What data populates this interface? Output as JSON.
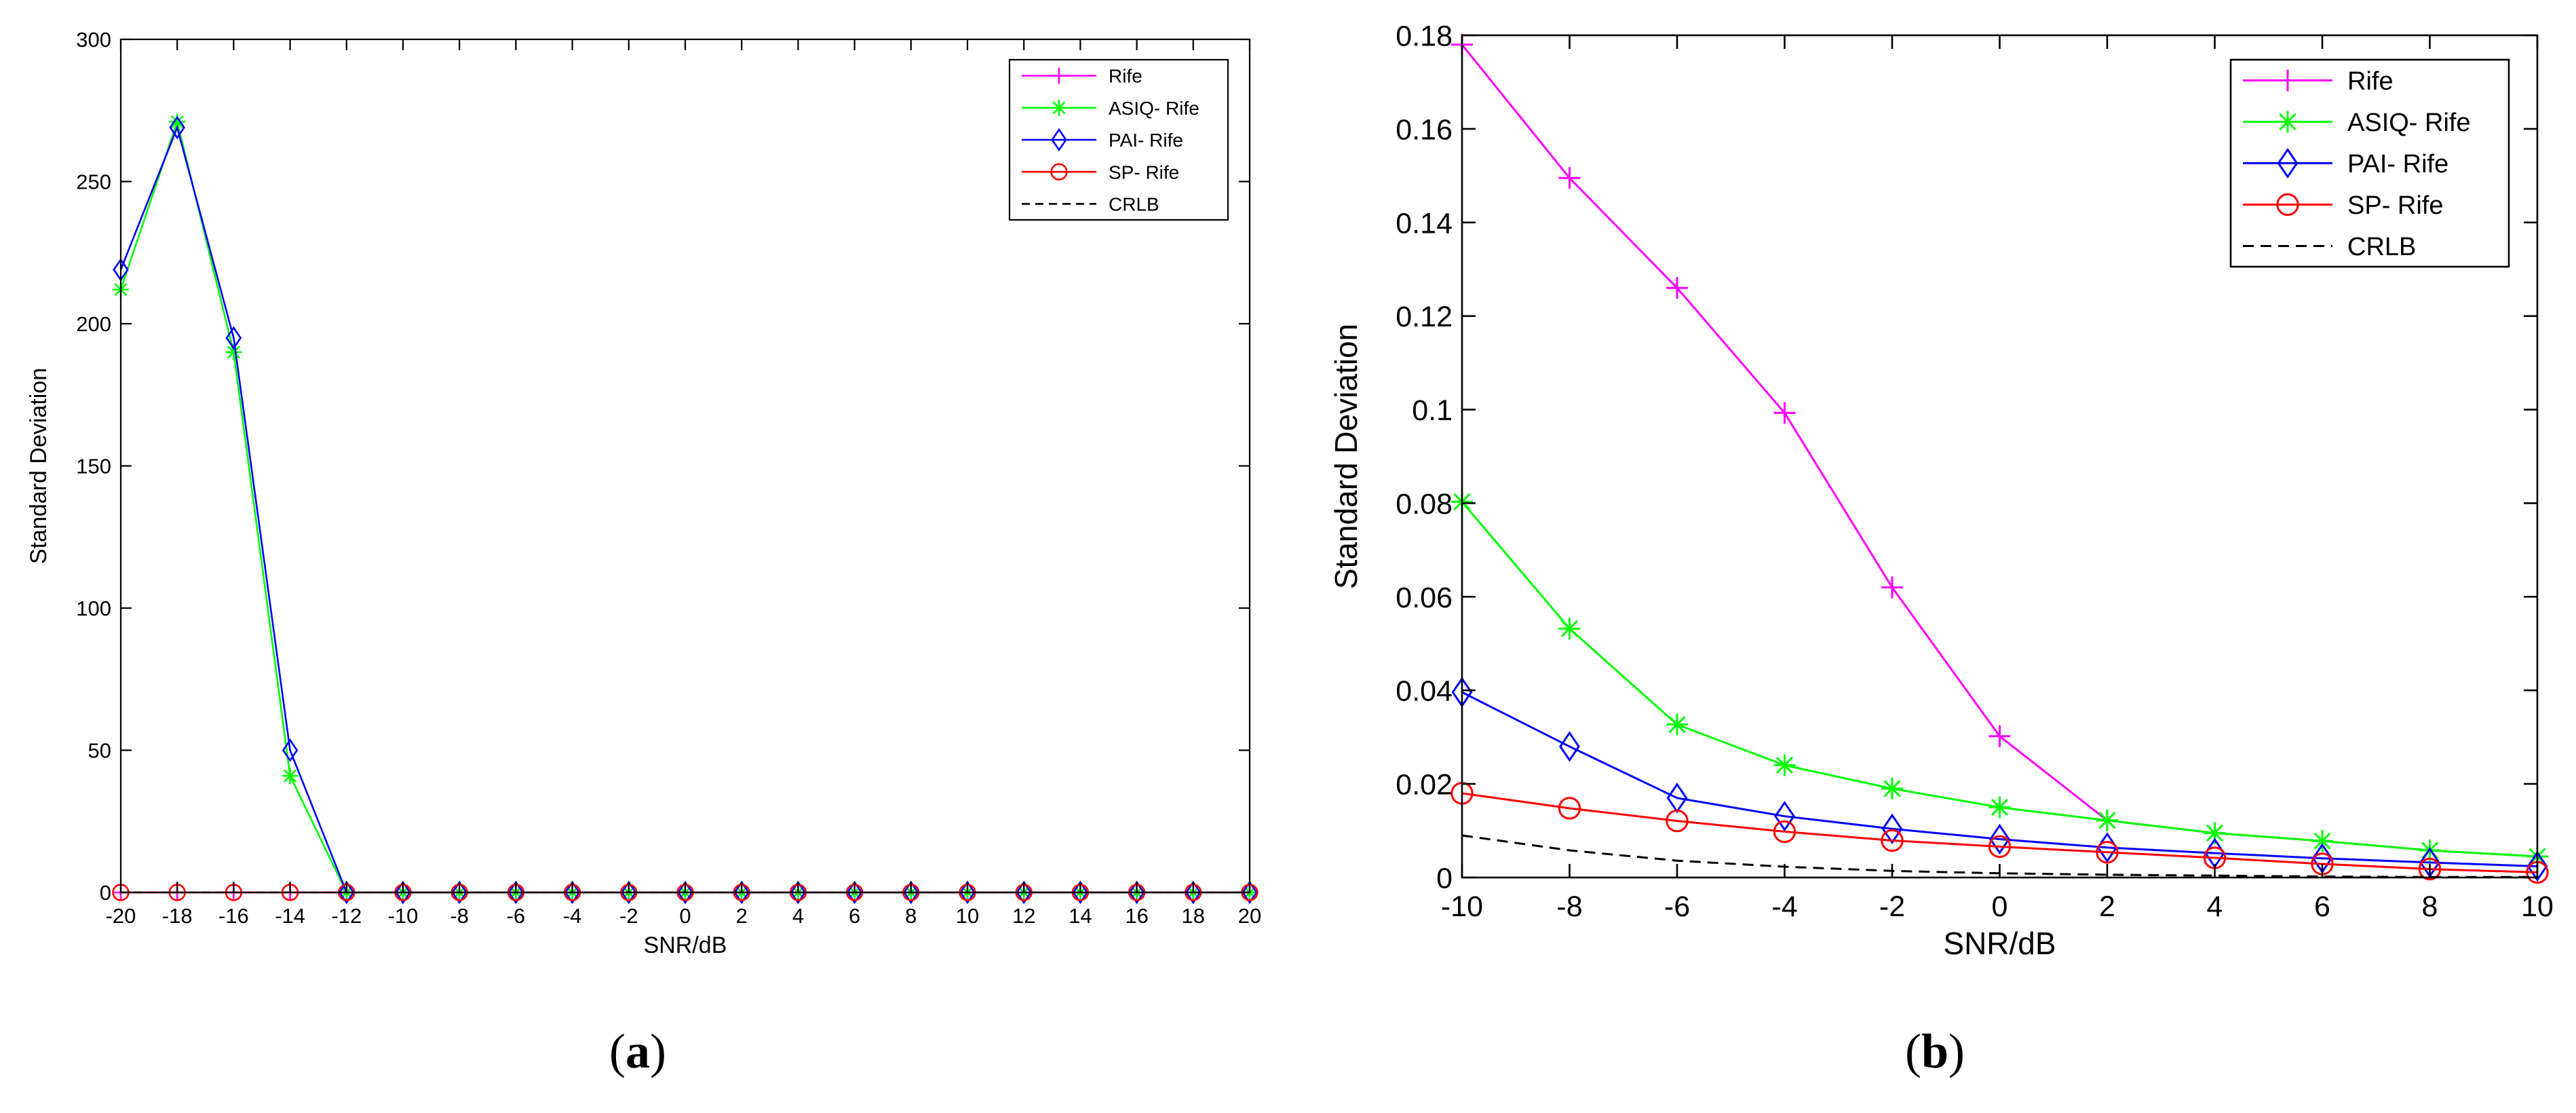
{
  "subcaptions": {
    "a": "a",
    "b": "b"
  },
  "colors": {
    "rife": "#ff00ff",
    "asiq": "#00ff00",
    "pai": "#0000ff",
    "sp": "#ff0000",
    "crlb": "#000000"
  },
  "chart_data": [
    {
      "type": "line",
      "panel": "a",
      "title": "",
      "xlabel": "SNR/dB",
      "ylabel": "Standard Deviation",
      "xlim": [
        -20,
        20
      ],
      "ylim": [
        0,
        300
      ],
      "xticks": [
        -20,
        -18,
        -16,
        -14,
        -12,
        -10,
        -8,
        -6,
        -4,
        -2,
        0,
        2,
        4,
        6,
        8,
        10,
        12,
        14,
        16,
        18,
        20
      ],
      "yticks": [
        0,
        50,
        100,
        150,
        200,
        250,
        300
      ],
      "legend_position": "top-right",
      "x": [
        -20,
        -18,
        -16,
        -14,
        -12,
        -10,
        -8,
        -6,
        -4,
        -2,
        0,
        2,
        4,
        6,
        8,
        10,
        12,
        14,
        16,
        18,
        20
      ],
      "series": [
        {
          "name": "Rife",
          "key": "rife",
          "marker": "plus",
          "dash": false,
          "values": [
            0,
            0,
            0,
            0,
            0,
            0,
            0,
            0,
            0,
            0,
            0,
            0,
            0,
            0,
            0,
            0,
            0,
            0,
            0,
            0,
            0
          ]
        },
        {
          "name": "ASIQ- Rife",
          "key": "asiq",
          "marker": "star",
          "dash": false,
          "values": [
            212,
            271,
            190,
            41,
            0,
            0,
            0,
            0,
            0,
            0,
            0,
            0,
            0,
            0,
            0,
            0,
            0,
            0,
            0,
            0,
            0
          ]
        },
        {
          "name": "PAI- Rife",
          "key": "pai",
          "marker": "diamond",
          "dash": false,
          "values": [
            219,
            269,
            195,
            50,
            0,
            0,
            0,
            0,
            0,
            0,
            0,
            0,
            0,
            0,
            0,
            0,
            0,
            0,
            0,
            0,
            0
          ]
        },
        {
          "name": "SP- Rife",
          "key": "sp",
          "marker": "circle",
          "dash": false,
          "values": [
            0,
            0,
            0,
            0,
            0,
            0,
            0,
            0,
            0,
            0,
            0,
            0,
            0,
            0,
            0,
            0,
            0,
            0,
            0,
            0,
            0
          ]
        },
        {
          "name": "CRLB",
          "key": "crlb",
          "marker": "none",
          "dash": true,
          "values": [
            0,
            0,
            0,
            0,
            0,
            0,
            0,
            0,
            0,
            0,
            0,
            0,
            0,
            0,
            0,
            0,
            0,
            0,
            0,
            0,
            0
          ]
        }
      ]
    },
    {
      "type": "line",
      "panel": "b",
      "title": "",
      "xlabel": "SNR/dB",
      "ylabel": "Standard Deviation",
      "xlim": [
        -10,
        10
      ],
      "ylim": [
        0,
        0.18
      ],
      "xticks": [
        -10,
        -8,
        -6,
        -4,
        -2,
        0,
        2,
        4,
        6,
        8,
        10
      ],
      "yticks": [
        0,
        0.02,
        0.04,
        0.06,
        0.08,
        0.1,
        0.12,
        0.14,
        0.16,
        0.18
      ],
      "legend_position": "top-right",
      "x": [
        -10,
        -8,
        -6,
        -4,
        -2,
        0,
        2,
        4,
        6,
        8,
        10
      ],
      "series": [
        {
          "name": "Rife",
          "key": "rife",
          "marker": "plus",
          "dash": false,
          "values": [
            0.178,
            0.1495,
            0.126,
            0.0993,
            0.062,
            0.0302,
            0.0122,
            0.0095,
            0.0078,
            0.0058,
            0.0045
          ]
        },
        {
          "name": "ASIQ- Rife",
          "key": "asiq",
          "marker": "star",
          "dash": false,
          "values": [
            0.0803,
            0.0532,
            0.0327,
            0.024,
            0.019,
            0.015,
            0.0122,
            0.0095,
            0.0078,
            0.0058,
            0.0045
          ]
        },
        {
          "name": "PAI- Rife",
          "key": "pai",
          "marker": "diamond",
          "dash": false,
          "values": [
            0.0396,
            0.028,
            0.017,
            0.0131,
            0.0104,
            0.0082,
            0.0064,
            0.0052,
            0.0041,
            0.0032,
            0.0024
          ]
        },
        {
          "name": "SP- Rife",
          "key": "sp",
          "marker": "circle",
          "dash": false,
          "values": [
            0.018,
            0.0148,
            0.0121,
            0.0098,
            0.0079,
            0.0066,
            0.0054,
            0.0042,
            0.0029,
            0.0018,
            0.0011
          ]
        },
        {
          "name": "CRLB",
          "key": "crlb",
          "marker": "none",
          "dash": true,
          "values": [
            0.009,
            0.0058,
            0.0036,
            0.0023,
            0.0014,
            0.0009,
            0.0006,
            0.0004,
            0.0002,
            0.0001,
            0.0001
          ]
        }
      ]
    }
  ]
}
